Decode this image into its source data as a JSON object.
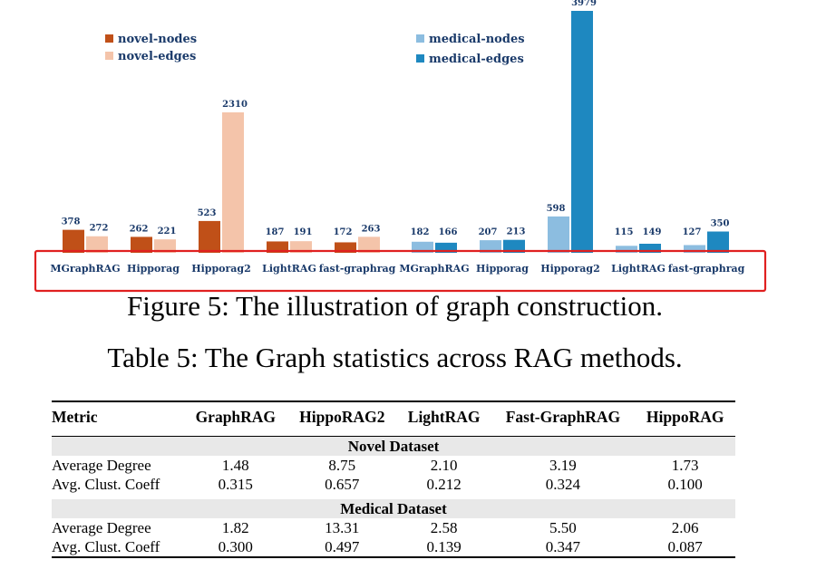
{
  "chart_data": {
    "type": "bar",
    "legend": {
      "placement": "top",
      "items": [
        {
          "name": "novel-nodes",
          "color": "#c05018"
        },
        {
          "name": "novel-edges",
          "color": "#f4c4aa"
        },
        {
          "name": "medical-nodes",
          "color": "#8cbde0"
        },
        {
          "name": "medical-edges",
          "color": "#1e88c0"
        }
      ]
    },
    "groups": [
      {
        "label": "MGraphRAG",
        "dataset": "novel",
        "nodes": 378,
        "edges": 272
      },
      {
        "label": "Hipporag",
        "dataset": "novel",
        "nodes": 262,
        "edges": 221
      },
      {
        "label": "Hipporag2",
        "dataset": "novel",
        "nodes": 523,
        "edges": 2310
      },
      {
        "label": "LightRAG",
        "dataset": "novel",
        "nodes": 187,
        "edges": 191
      },
      {
        "label": "fast-graphrag",
        "dataset": "novel",
        "nodes": 172,
        "edges": 263
      },
      {
        "label": "MGraphRAG",
        "dataset": "medical",
        "nodes": 182,
        "edges": 166
      },
      {
        "label": "Hipporag",
        "dataset": "medical",
        "nodes": 207,
        "edges": 213
      },
      {
        "label": "Hipporag2",
        "dataset": "medical",
        "nodes": 598,
        "edges": 3979
      },
      {
        "label": "LightRAG",
        "dataset": "medical",
        "nodes": 115,
        "edges": 149
      },
      {
        "label": "fast-graphrag",
        "dataset": "medical",
        "nodes": 127,
        "edges": 350
      }
    ],
    "colors": {
      "novel-nodes": "#c05018",
      "novel-edges": "#f4c4aa",
      "medical-nodes": "#8cbde0",
      "medical-edges": "#1e88c0",
      "label": "#1a3a6a",
      "highlight": "#e02020"
    }
  },
  "figure_caption": "Figure 5: The illustration of graph construction.",
  "table_caption": "Table 5: The Graph statistics across RAG methods.",
  "table": {
    "headers": [
      "Metric",
      "GraphRAG",
      "HippoRAG2",
      "LightRAG",
      "Fast-GraphRAG",
      "HippoRAG"
    ],
    "sections": [
      {
        "title": "Novel Dataset",
        "rows": [
          {
            "metric": "Average Degree",
            "values": [
              "1.48",
              "8.75",
              "2.10",
              "3.19",
              "1.73"
            ]
          },
          {
            "metric": "Avg. Clust. Coeff",
            "values": [
              "0.315",
              "0.657",
              "0.212",
              "0.324",
              "0.100"
            ]
          }
        ]
      },
      {
        "title": "Medical Dataset",
        "rows": [
          {
            "metric": "Average Degree",
            "values": [
              "1.82",
              "13.31",
              "2.58",
              "5.50",
              "2.06"
            ]
          },
          {
            "metric": "Avg. Clust. Coeff",
            "values": [
              "0.300",
              "0.497",
              "0.139",
              "0.347",
              "0.087"
            ]
          }
        ]
      }
    ]
  }
}
